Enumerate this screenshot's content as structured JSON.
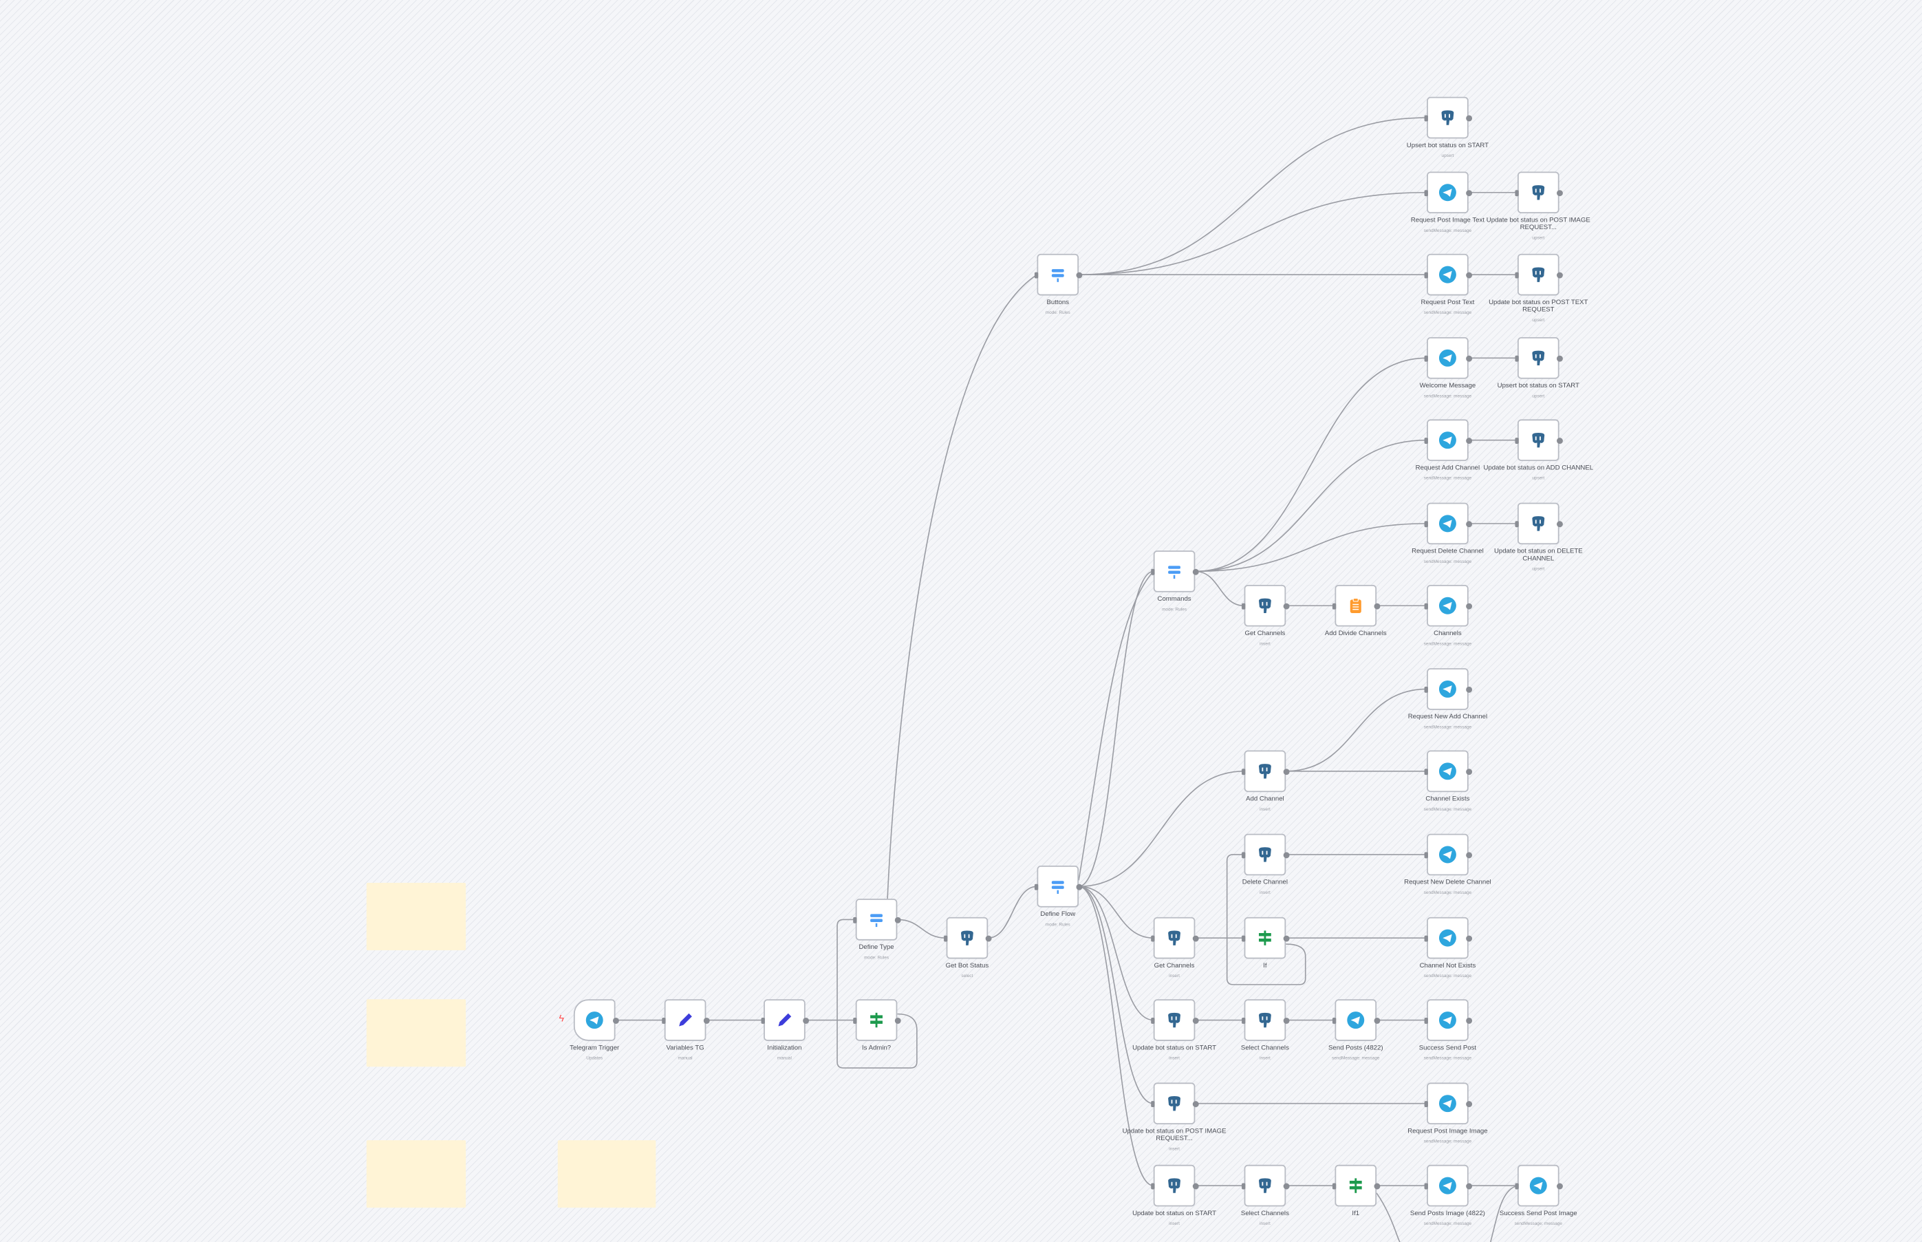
{
  "canvas": {
    "background": "#f5f6f9",
    "edge_color": "#9a9ca3",
    "sticky_color": "#fff4d6"
  },
  "icons": {
    "telegram": {
      "name": "telegram-icon",
      "color": "#2ea6de"
    },
    "postgres": {
      "name": "postgres-icon",
      "color": "#336791"
    },
    "switch": {
      "name": "switch-icon",
      "color": "#4b9cf5"
    },
    "if": {
      "name": "if-icon",
      "color": "#1d9a4d"
    },
    "edit": {
      "name": "pencil-icon",
      "color": "#3d3ddb"
    },
    "code": {
      "name": "clipboard-icon",
      "color": "#ff9b2e"
    }
  },
  "nodes": [
    {
      "label": "Telegram Trigger",
      "subtitle": "Updates",
      "icon": "telegram",
      "trigger": true
    },
    {
      "label": "Variables TG",
      "subtitle": "manual",
      "icon": "edit"
    },
    {
      "label": "Initialization",
      "subtitle": "manual",
      "icon": "edit"
    },
    {
      "label": "Is Admin?",
      "subtitle": "",
      "icon": "if"
    },
    {
      "label": "Define Type",
      "subtitle": "mode: Rules",
      "icon": "switch"
    },
    {
      "label": "Get Bot Status",
      "subtitle": "select",
      "icon": "postgres"
    },
    {
      "label": "Define Flow",
      "subtitle": "mode: Rules",
      "icon": "switch"
    },
    {
      "label": "Buttons",
      "subtitle": "mode: Rules",
      "icon": "switch"
    },
    {
      "label": "Commands",
      "subtitle": "mode: Rules",
      "icon": "switch"
    },
    {
      "label": "Upsert bot status on START",
      "subtitle": "upsert",
      "icon": "postgres"
    },
    {
      "label": "Request Post Image Text",
      "subtitle": "sendMessage: message",
      "icon": "telegram"
    },
    {
      "label": "Update bot status on POST IMAGE REQUEST...",
      "subtitle": "upsert",
      "icon": "postgres"
    },
    {
      "label": "Request Post Text",
      "subtitle": "sendMessage: message",
      "icon": "telegram"
    },
    {
      "label": "Update bot status on POST TEXT REQUEST",
      "subtitle": "upsert",
      "icon": "postgres"
    },
    {
      "label": "Welcome Message",
      "subtitle": "sendMessage: message",
      "icon": "telegram"
    },
    {
      "label": "Upsert bot status on START",
      "subtitle": "upsert",
      "icon": "postgres"
    },
    {
      "label": "Request Add Channel",
      "subtitle": "sendMessage: message",
      "icon": "telegram"
    },
    {
      "label": "Update bot status on ADD CHANNEL",
      "subtitle": "upsert",
      "icon": "postgres"
    },
    {
      "label": "Request Delete Channel",
      "subtitle": "sendMessage: message",
      "icon": "telegram"
    },
    {
      "label": "Update bot status on DELETE CHANNEL",
      "subtitle": "upsert",
      "icon": "postgres"
    },
    {
      "label": "Get Channels",
      "subtitle": "insert",
      "icon": "postgres"
    },
    {
      "label": "Add Divide Channels",
      "subtitle": "",
      "icon": "code"
    },
    {
      "label": "Channels",
      "subtitle": "sendMessage: message",
      "icon": "telegram"
    },
    {
      "label": "Request New Add Channel",
      "subtitle": "sendMessage: message",
      "icon": "telegram"
    },
    {
      "label": "Add Channel",
      "subtitle": "insert",
      "icon": "postgres"
    },
    {
      "label": "Channel Exists",
      "subtitle": "sendMessage: message",
      "icon": "telegram"
    },
    {
      "label": "Delete Channel",
      "subtitle": "insert",
      "icon": "postgres"
    },
    {
      "label": "Request New Delete Channel",
      "subtitle": "sendMessage: message",
      "icon": "telegram"
    },
    {
      "label": "Get Channels",
      "subtitle": "insert",
      "icon": "postgres"
    },
    {
      "label": "If",
      "subtitle": "",
      "icon": "if"
    },
    {
      "label": "Channel Not Exists",
      "subtitle": "sendMessage: message",
      "icon": "telegram"
    },
    {
      "label": "Update bot status on START",
      "subtitle": "insert",
      "icon": "postgres"
    },
    {
      "label": "Select Channels",
      "subtitle": "insert",
      "icon": "postgres"
    },
    {
      "label": "Send Posts (4822)",
      "subtitle": "sendMessage: message",
      "icon": "telegram"
    },
    {
      "label": "Success Send Post",
      "subtitle": "sendMessage: message",
      "icon": "telegram"
    },
    {
      "label": "Update bot status on POST IMAGE REQUEST...",
      "subtitle": "insert",
      "icon": "postgres"
    },
    {
      "label": "Request Post Image Image",
      "subtitle": "sendMessage: message",
      "icon": "telegram"
    },
    {
      "label": "Update bot status on START",
      "subtitle": "insert",
      "icon": "postgres"
    },
    {
      "label": "Select Channels",
      "subtitle": "insert",
      "icon": "postgres"
    },
    {
      "label": "If1",
      "subtitle": "",
      "icon": "if"
    },
    {
      "label": "Send Posts Image (4822)",
      "subtitle": "sendMessage: message",
      "icon": "telegram"
    },
    {
      "label": "Success Send Post Image",
      "subtitle": "sendMessage: message",
      "icon": "telegram"
    }
  ]
}
